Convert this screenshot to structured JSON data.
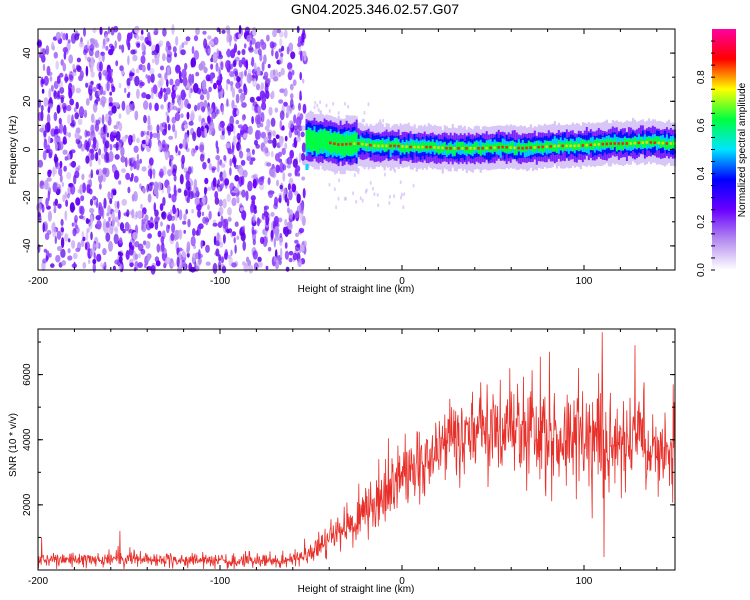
{
  "title": "GN04.2025.346.02.57.G07",
  "chart_data": [
    {
      "type": "heatmap",
      "title": "GN04.2025.346.02.57.G07",
      "xlabel": "Height of straight line (km)",
      "ylabel": "Frequency (Hz)",
      "xlim": [
        -200,
        150
      ],
      "ylim": [
        -50,
        50
      ],
      "xticks": [
        -200,
        -100,
        0,
        100
      ],
      "xtick_labels": [
        "-200",
        "-100",
        "0",
        "100"
      ],
      "yticks": [
        -40,
        -20,
        0,
        20,
        40
      ],
      "ytick_labels": [
        "-40",
        "-20",
        "0",
        "20",
        "40"
      ],
      "noise_region_x": [
        -200,
        -53
      ],
      "signal_start_x": -53,
      "signal_frequency_trace": {
        "x": [
          -53,
          -45,
          -35,
          -25,
          -15,
          -5,
          5,
          15,
          25,
          35,
          45,
          55,
          65,
          75,
          85,
          95,
          105,
          115,
          125,
          135,
          145,
          150
        ],
        "y": [
          4,
          3.5,
          2,
          2.5,
          1.5,
          1.5,
          1,
          1,
          0.5,
          0.5,
          0.5,
          1,
          0.5,
          1,
          1.5,
          1.5,
          2,
          2.5,
          2.5,
          3,
          2.5,
          2.5
        ]
      },
      "colorbar": {
        "label": "Normalized spectral amplitude",
        "range": [
          0,
          1
        ],
        "ticks": [
          0.0,
          0.2,
          0.4,
          0.6,
          0.8
        ],
        "tick_labels": [
          "0.0",
          "0.2",
          "0.4",
          "0.6",
          "0.8"
        ],
        "colormap": [
          "#ffffff",
          "#b48cf0",
          "#6a00ff",
          "#0000ff",
          "#00e5ff",
          "#00ff40",
          "#ffff00",
          "#ff0000",
          "#ff00a0"
        ]
      }
    },
    {
      "type": "line",
      "xlabel": "Height of straight line (km)",
      "ylabel": "SNR (10 * v/v)",
      "xlim": [
        -200,
        150
      ],
      "ylim": [
        0,
        7400
      ],
      "xticks": [
        -200,
        -100,
        0,
        100
      ],
      "xtick_labels": [
        "-200",
        "-100",
        "0",
        "100"
      ],
      "yticks": [
        2000,
        4000,
        6000
      ],
      "ytick_labels": [
        "2000",
        "4000",
        "6000"
      ],
      "line_color": "#e8302a",
      "trend": {
        "x": [
          -200,
          -180,
          -160,
          -140,
          -120,
          -100,
          -80,
          -60,
          -50,
          -40,
          -30,
          -20,
          -10,
          0,
          10,
          20,
          25,
          35,
          50,
          70,
          90,
          110,
          130,
          150
        ],
        "y": [
          300,
          300,
          350,
          300,
          280,
          280,
          280,
          320,
          500,
          900,
          1300,
          1800,
          2300,
          2800,
          3200,
          3600,
          4000,
          4100,
          4200,
          4100,
          4000,
          3900,
          3800,
          3800
        ]
      },
      "spread": {
        "x": [
          -200,
          -60,
          -40,
          -20,
          0,
          20,
          40,
          80,
          110,
          150
        ],
        "y": [
          180,
          200,
          450,
          700,
          900,
          1000,
          1100,
          1300,
          1400,
          1200
        ]
      },
      "peaks": [
        {
          "x": -198,
          "y": 1000
        },
        {
          "x": -155,
          "y": 1200
        },
        {
          "x": 50,
          "y": 5400
        },
        {
          "x": 81,
          "y": 6700
        },
        {
          "x": 97,
          "y": 6200
        },
        {
          "x": 110,
          "y": 7300
        },
        {
          "x": 111,
          "y": 400
        },
        {
          "x": 128,
          "y": 6900
        },
        {
          "x": 149,
          "y": 5700
        }
      ],
      "samples": 1400
    }
  ]
}
